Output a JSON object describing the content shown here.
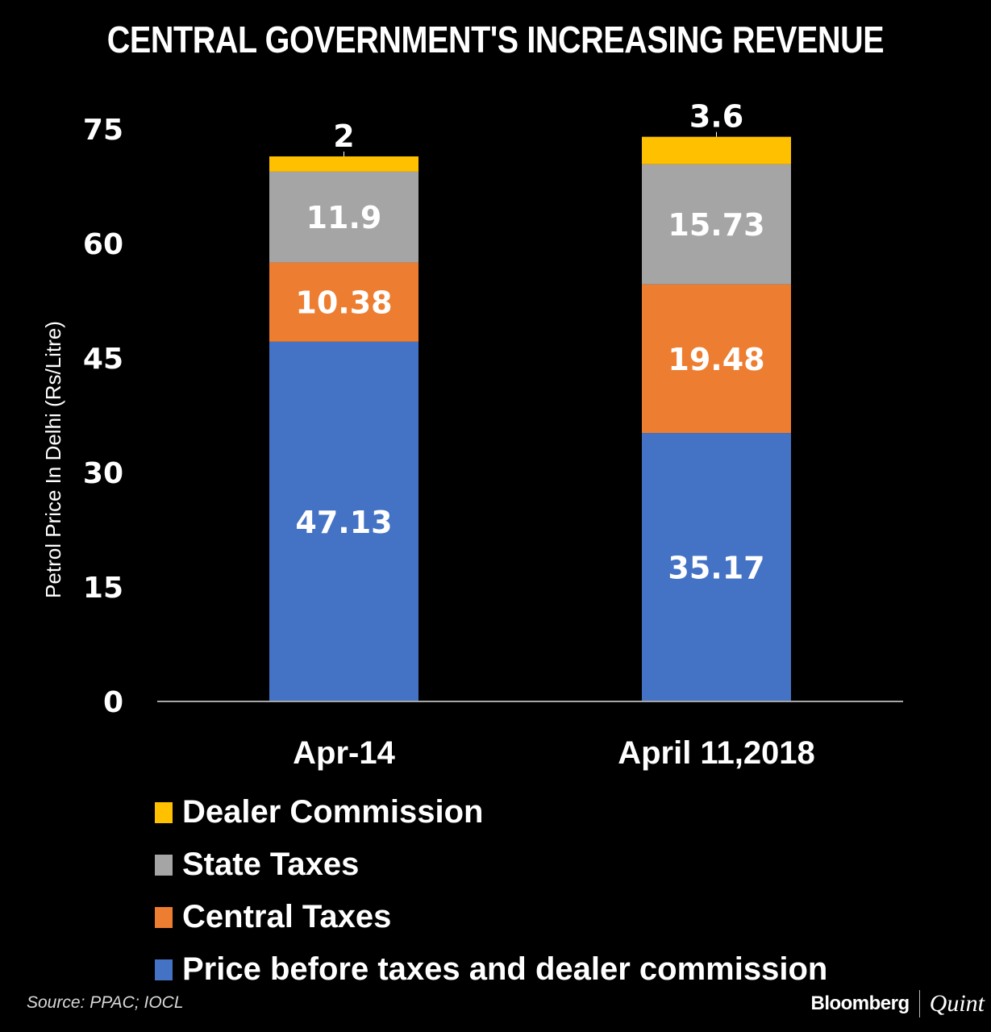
{
  "header": {
    "title": "CENTRAL GOVERNMENT'S INCREASING REVENUE"
  },
  "footer": {
    "source": "Source: PPAC; IOCL",
    "brand_primary": "Bloomberg",
    "brand_secondary": "Quint"
  },
  "colors": {
    "background": "#000000",
    "dealer_commission": "#FFC000",
    "state_taxes": "#A5A5A5",
    "central_taxes": "#ED7D31",
    "price_before_taxes": "#4472C4",
    "axis_line": "#A6A6A6"
  },
  "legend": [
    {
      "label": "Dealer Commission",
      "color": "#FFC000"
    },
    {
      "label": "State Taxes",
      "color": "#A5A5A5"
    },
    {
      "label": "Central Taxes",
      "color": "#ED7D31"
    },
    {
      "label": "Price before taxes and dealer commission",
      "color": "#4472C4"
    }
  ],
  "chart_data": {
    "type": "bar",
    "stacked": true,
    "title": "CENTRAL GOVERNMENT'S INCREASING REVENUE",
    "xlabel": "",
    "ylabel": "Petrol Price In Delhi (Rs/Litre)",
    "ylim": [
      0,
      75
    ],
    "yticks": [
      0,
      15,
      30,
      45,
      60,
      75
    ],
    "grid": false,
    "legend_position": "bottom-left",
    "categories": [
      "Apr-14",
      "April 11,2018"
    ],
    "series": [
      {
        "name": "Price before taxes and dealer commission",
        "color": "#4472C4",
        "values": [
          47.13,
          35.17
        ],
        "labels": [
          "47.13",
          "35.17"
        ]
      },
      {
        "name": "Central Taxes",
        "color": "#ED7D31",
        "values": [
          10.38,
          19.48
        ],
        "labels": [
          "10.38",
          "19.48"
        ]
      },
      {
        "name": "State Taxes",
        "color": "#A5A5A5",
        "values": [
          11.9,
          15.73
        ],
        "labels": [
          "11.9",
          "15.73"
        ]
      },
      {
        "name": "Dealer Commission",
        "color": "#FFC000",
        "values": [
          2,
          3.6
        ],
        "labels": [
          "2",
          "3.6"
        ],
        "label_position": "above"
      }
    ]
  }
}
